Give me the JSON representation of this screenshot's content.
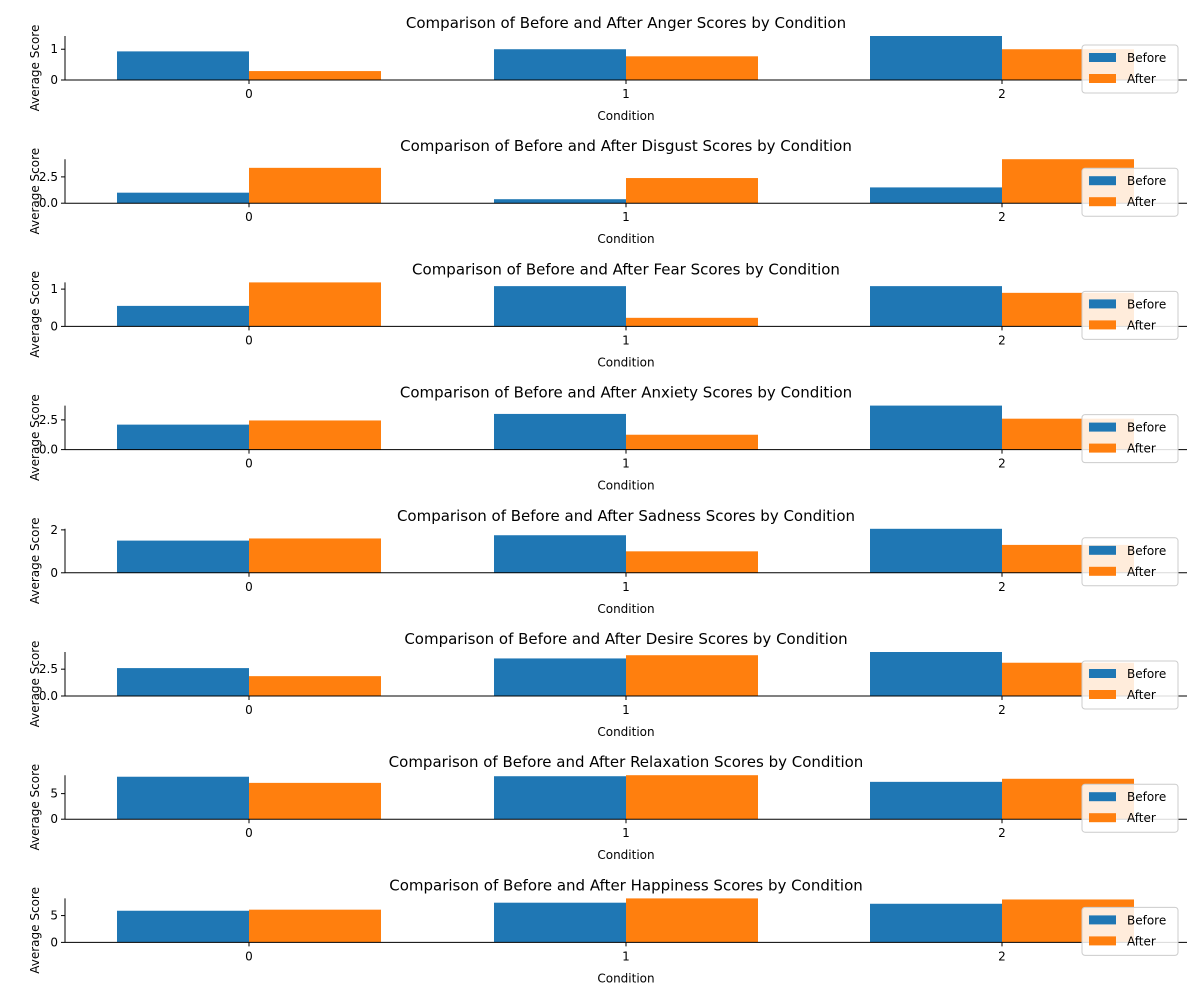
{
  "chart_data": [
    {
      "type": "bar",
      "title": "Comparison of Before and After Anger Scores by Condition",
      "xlabel": "Condition",
      "ylabel": "Average Score",
      "categories": [
        "0",
        "1",
        "2"
      ],
      "series": [
        {
          "name": "Before",
          "color": "#1f77b4",
          "values": [
            0.93,
            1.0,
            1.43
          ]
        },
        {
          "name": "After",
          "color": "#ff7f0e",
          "values": [
            0.29,
            0.77,
            1.0
          ]
        }
      ],
      "ylim": [
        0,
        1.43
      ],
      "yticks": [
        0,
        1
      ],
      "ytick_labels": [
        "0",
        "1"
      ],
      "legend": "right"
    },
    {
      "type": "bar",
      "title": "Comparison of Before and After Disgust Scores by Condition",
      "xlabel": "Condition",
      "ylabel": "Average Score",
      "categories": [
        "0",
        "1",
        "2"
      ],
      "series": [
        {
          "name": "Before",
          "color": "#1f77b4",
          "values": [
            1.0,
            0.38,
            1.5
          ]
        },
        {
          "name": "After",
          "color": "#ff7f0e",
          "values": [
            3.36,
            2.39,
            4.18
          ]
        }
      ],
      "ylim": [
        0,
        4.18
      ],
      "yticks": [
        0,
        2.5
      ],
      "ytick_labels": [
        "0.0",
        "2.5"
      ],
      "legend": "right"
    },
    {
      "type": "bar",
      "title": "Comparison of Before and After Fear Scores by Condition",
      "xlabel": "Condition",
      "ylabel": "Average Score",
      "categories": [
        "0",
        "1",
        "2"
      ],
      "series": [
        {
          "name": "Before",
          "color": "#1f77b4",
          "values": [
            0.55,
            1.08,
            1.08
          ]
        },
        {
          "name": "After",
          "color": "#ff7f0e",
          "values": [
            1.18,
            0.23,
            0.9
          ]
        }
      ],
      "ylim": [
        0,
        1.18
      ],
      "yticks": [
        0,
        1
      ],
      "ytick_labels": [
        "0",
        "1"
      ],
      "legend": "right"
    },
    {
      "type": "bar",
      "title": "Comparison of Before and After Anxiety Scores by Condition",
      "xlabel": "Condition",
      "ylabel": "Average Score",
      "categories": [
        "0",
        "1",
        "2"
      ],
      "series": [
        {
          "name": "Before",
          "color": "#1f77b4",
          "values": [
            2.1,
            3.0,
            3.7
          ]
        },
        {
          "name": "After",
          "color": "#ff7f0e",
          "values": [
            2.45,
            1.25,
            2.6
          ]
        }
      ],
      "ylim": [
        0,
        3.7
      ],
      "yticks": [
        0,
        2.5
      ],
      "ytick_labels": [
        "0.0",
        "2.5"
      ],
      "legend": "right"
    },
    {
      "type": "bar",
      "title": "Comparison of Before and After Sadness Scores by Condition",
      "xlabel": "Condition",
      "ylabel": "Average Score",
      "categories": [
        "0",
        "1",
        "2"
      ],
      "series": [
        {
          "name": "Before",
          "color": "#1f77b4",
          "values": [
            1.5,
            1.75,
            2.05
          ]
        },
        {
          "name": "After",
          "color": "#ff7f0e",
          "values": [
            1.6,
            1.0,
            1.3
          ]
        }
      ],
      "ylim": [
        0,
        2.05
      ],
      "yticks": [
        0,
        2
      ],
      "ytick_labels": [
        "0",
        "2"
      ],
      "legend": "right"
    },
    {
      "type": "bar",
      "title": "Comparison of Before and After Desire Scores by Condition",
      "xlabel": "Condition",
      "ylabel": "Average Score",
      "categories": [
        "0",
        "1",
        "2"
      ],
      "series": [
        {
          "name": "Before",
          "color": "#1f77b4",
          "values": [
            2.6,
            3.5,
            4.1
          ]
        },
        {
          "name": "After",
          "color": "#ff7f0e",
          "values": [
            1.85,
            3.8,
            3.1
          ]
        }
      ],
      "ylim": [
        0,
        4.1
      ],
      "yticks": [
        0,
        2.5
      ],
      "ytick_labels": [
        "0.0",
        "2.5"
      ],
      "legend": "right"
    },
    {
      "type": "bar",
      "title": "Comparison of Before and After Relaxation Scores by Condition",
      "xlabel": "Condition",
      "ylabel": "Average Score",
      "categories": [
        "0",
        "1",
        "2"
      ],
      "series": [
        {
          "name": "Before",
          "color": "#1f77b4",
          "values": [
            8.3,
            8.4,
            7.3
          ]
        },
        {
          "name": "After",
          "color": "#ff7f0e",
          "values": [
            7.1,
            8.6,
            7.9
          ]
        }
      ],
      "ylim": [
        0,
        8.6
      ],
      "yticks": [
        0,
        5
      ],
      "ytick_labels": [
        "0",
        "5"
      ],
      "legend": "right"
    },
    {
      "type": "bar",
      "title": "Comparison of Before and After Happiness Scores by Condition",
      "xlabel": "Condition",
      "ylabel": "Average Score",
      "categories": [
        "0",
        "1",
        "2"
      ],
      "series": [
        {
          "name": "Before",
          "color": "#1f77b4",
          "values": [
            5.9,
            7.4,
            7.2
          ]
        },
        {
          "name": "After",
          "color": "#ff7f0e",
          "values": [
            6.1,
            8.2,
            8.0
          ]
        }
      ],
      "ylim": [
        0,
        8.2
      ],
      "yticks": [
        0,
        5
      ],
      "ytick_labels": [
        "0",
        "5"
      ],
      "legend": "right"
    }
  ]
}
